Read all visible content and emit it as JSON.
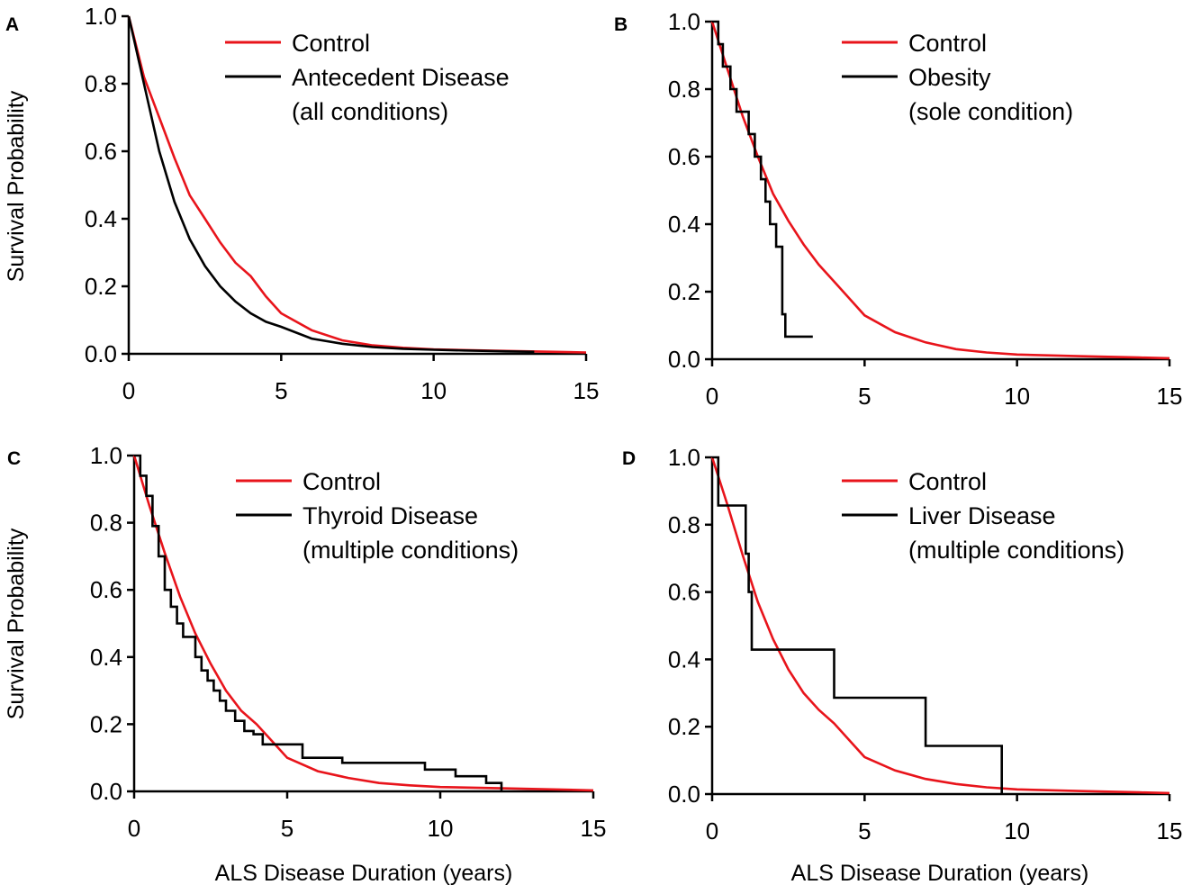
{
  "colors": {
    "control": "#e8141b",
    "condition": "#000000"
  },
  "x_axis_title": "ALS Disease Duration (years)",
  "y_axis_title": "Survival Probability",
  "chart_data": [
    {
      "panel": "A",
      "type": "line",
      "xlim": [
        0,
        15
      ],
      "ylim": [
        0,
        1
      ],
      "xticks": [
        "0",
        "5",
        "10",
        "15"
      ],
      "yticks": [
        "0.0",
        "0.2",
        "0.4",
        "0.6",
        "0.8",
        "1.0"
      ],
      "ylabel": "Survival Probability",
      "xlabel": "",
      "legend": [
        "Control",
        "Antecedent Disease",
        "(all conditions)"
      ],
      "series": [
        {
          "name": "Control",
          "step": false,
          "x": [
            0,
            0.5,
            1,
            1.5,
            2,
            2.5,
            3,
            3.5,
            4,
            4.5,
            5,
            6,
            7,
            8,
            9,
            10,
            12,
            14,
            15
          ],
          "y": [
            1.0,
            0.82,
            0.7,
            0.58,
            0.47,
            0.4,
            0.33,
            0.27,
            0.23,
            0.17,
            0.12,
            0.07,
            0.04,
            0.025,
            0.018,
            0.013,
            0.009,
            0.006,
            0.004
          ]
        },
        {
          "name": "Antecedent Disease",
          "step": false,
          "x": [
            0,
            0.5,
            1,
            1.5,
            2,
            2.5,
            3,
            3.5,
            4,
            4.5,
            5,
            6,
            7,
            8,
            9,
            10,
            11,
            12,
            13.3
          ],
          "y": [
            1.0,
            0.8,
            0.6,
            0.45,
            0.34,
            0.26,
            0.2,
            0.155,
            0.12,
            0.095,
            0.08,
            0.045,
            0.03,
            0.02,
            0.015,
            0.012,
            0.01,
            0.008,
            0.006
          ]
        }
      ]
    },
    {
      "panel": "B",
      "type": "line",
      "xlim": [
        0,
        15
      ],
      "ylim": [
        0,
        1
      ],
      "xticks": [
        "0",
        "5",
        "10",
        "15"
      ],
      "yticks": [
        "0.0",
        "0.2",
        "0.4",
        "0.6",
        "0.8",
        "1.0"
      ],
      "ylabel": "",
      "xlabel": "",
      "legend": [
        "Control",
        "Obesity",
        "(sole condition)"
      ],
      "series": [
        {
          "name": "Control",
          "step": false,
          "x": [
            0,
            0.5,
            1,
            1.5,
            2,
            2.5,
            3,
            3.5,
            4,
            4.5,
            5,
            6,
            7,
            8,
            9,
            10,
            12,
            14,
            15
          ],
          "y": [
            1.0,
            0.86,
            0.72,
            0.6,
            0.49,
            0.41,
            0.34,
            0.28,
            0.23,
            0.18,
            0.13,
            0.08,
            0.05,
            0.03,
            0.02,
            0.014,
            0.009,
            0.005,
            0.003
          ]
        },
        {
          "name": "Obesity",
          "step": true,
          "x": [
            0,
            0.2,
            0.35,
            0.6,
            0.8,
            1.2,
            1.4,
            1.6,
            1.75,
            1.9,
            2.1,
            2.3,
            2.4,
            3.3
          ],
          "y": [
            1.0,
            0.933,
            0.867,
            0.8,
            0.733,
            0.667,
            0.6,
            0.533,
            0.467,
            0.4,
            0.333,
            0.133,
            0.067,
            0.067
          ]
        }
      ]
    },
    {
      "panel": "C",
      "type": "line",
      "xlim": [
        0,
        15
      ],
      "ylim": [
        0,
        1
      ],
      "xticks": [
        "0",
        "5",
        "10",
        "15"
      ],
      "yticks": [
        "0.0",
        "0.2",
        "0.4",
        "0.6",
        "0.8",
        "1.0"
      ],
      "ylabel": "Survival Probability",
      "xlabel": "ALS Disease Duration (years)",
      "legend": [
        "Control",
        "Thyroid Disease",
        "(multiple conditions)"
      ],
      "series": [
        {
          "name": "Control",
          "step": false,
          "x": [
            0,
            0.5,
            1,
            1.5,
            2,
            2.5,
            3,
            3.5,
            4,
            4.5,
            5,
            6,
            7,
            8,
            9,
            10,
            12,
            14,
            15
          ],
          "y": [
            1.0,
            0.85,
            0.71,
            0.58,
            0.47,
            0.38,
            0.3,
            0.24,
            0.2,
            0.15,
            0.1,
            0.06,
            0.04,
            0.025,
            0.018,
            0.013,
            0.009,
            0.005,
            0.003
          ]
        },
        {
          "name": "Thyroid Disease",
          "step": true,
          "x": [
            0,
            0.2,
            0.4,
            0.6,
            0.8,
            1.0,
            1.2,
            1.4,
            1.6,
            1.8,
            2.0,
            2.2,
            2.4,
            2.6,
            2.8,
            3.0,
            3.3,
            3.6,
            3.9,
            4.2,
            5.2,
            5.5,
            6.8,
            9.5,
            10.5,
            11.5,
            12.0
          ],
          "y": [
            1.0,
            0.94,
            0.88,
            0.79,
            0.7,
            0.6,
            0.55,
            0.5,
            0.46,
            0.46,
            0.4,
            0.36,
            0.33,
            0.3,
            0.27,
            0.24,
            0.21,
            0.18,
            0.17,
            0.14,
            0.14,
            0.1,
            0.085,
            0.065,
            0.045,
            0.025,
            0.0
          ]
        }
      ]
    },
    {
      "panel": "D",
      "type": "line",
      "xlim": [
        0,
        15
      ],
      "ylim": [
        0,
        1
      ],
      "xticks": [
        "0",
        "5",
        "10",
        "15"
      ],
      "yticks": [
        "0.0",
        "0.2",
        "0.4",
        "0.6",
        "0.8",
        "1.0"
      ],
      "ylabel": "",
      "xlabel": "ALS Disease Duration (years)",
      "legend": [
        "Control",
        "Liver Disease",
        "(multiple conditions)"
      ],
      "series": [
        {
          "name": "Control",
          "step": false,
          "x": [
            0,
            0.5,
            1,
            1.5,
            2,
            2.5,
            3,
            3.5,
            4,
            4.5,
            5,
            6,
            7,
            8,
            9,
            10,
            12,
            14,
            15
          ],
          "y": [
            1.0,
            0.86,
            0.71,
            0.57,
            0.46,
            0.37,
            0.3,
            0.25,
            0.21,
            0.16,
            0.11,
            0.07,
            0.045,
            0.03,
            0.02,
            0.014,
            0.009,
            0.005,
            0.003
          ]
        },
        {
          "name": "Liver Disease",
          "step": true,
          "x": [
            0,
            0.2,
            1.1,
            1.2,
            1.3,
            4.0,
            7.0,
            9.5
          ],
          "y": [
            1.0,
            0.857,
            0.714,
            0.6,
            0.429,
            0.286,
            0.143,
            0.0
          ]
        }
      ]
    }
  ]
}
